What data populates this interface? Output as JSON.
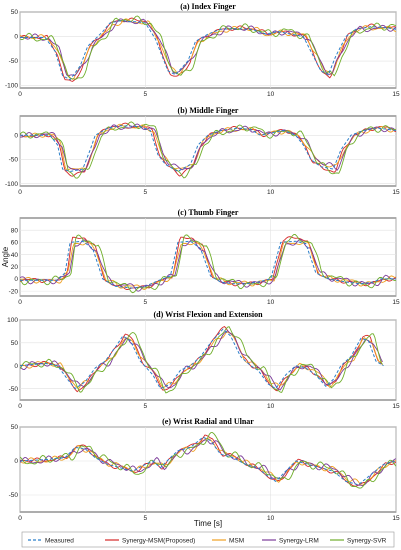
{
  "chart_data": {
    "type": "line",
    "xlabel": "Time [s]",
    "ylabel": "Angle",
    "legend": {
      "placement": "bottom",
      "entries": [
        "Measured",
        "Synergy-MSM(Proposed)",
        "MSM",
        "Synergy-LRM",
        "Synergy-SVR"
      ]
    },
    "series_styles": {
      "Measured": {
        "color": "#2b7fc9",
        "dash": true
      },
      "Synergy-MSM(Proposed)": {
        "color": "#d62728",
        "dash": false
      },
      "MSM": {
        "color": "#f0a020",
        "dash": false
      },
      "Synergy-LRM": {
        "color": "#7b3a99",
        "dash": false
      },
      "Synergy-SVR": {
        "color": "#6fae2a",
        "dash": false
      }
    },
    "panels": [
      {
        "title": "(a) Index Finger",
        "xlim": [
          0,
          15
        ],
        "ylim": [
          -105,
          50
        ],
        "xticks": [
          0,
          5,
          10,
          15
        ],
        "yticks": [
          50,
          0,
          -50,
          -100
        ],
        "measured": [
          [
            0,
            -2
          ],
          [
            1.0,
            -2
          ],
          [
            1.4,
            -30
          ],
          [
            1.7,
            -80
          ],
          [
            2.0,
            -88
          ],
          [
            2.4,
            -60
          ],
          [
            2.7,
            -20
          ],
          [
            3.0,
            -5
          ],
          [
            3.3,
            10
          ],
          [
            3.6,
            28
          ],
          [
            4.0,
            32
          ],
          [
            4.6,
            30
          ],
          [
            5.0,
            28
          ],
          [
            5.4,
            -5
          ],
          [
            5.9,
            -70
          ],
          [
            6.2,
            -78
          ],
          [
            6.7,
            -50
          ],
          [
            7.0,
            -10
          ],
          [
            7.5,
            5
          ],
          [
            8.0,
            15
          ],
          [
            8.7,
            16
          ],
          [
            9.3,
            14
          ],
          [
            9.8,
            5
          ],
          [
            10.3,
            10
          ],
          [
            10.8,
            5
          ],
          [
            11.3,
            0
          ],
          [
            11.7,
            -40
          ],
          [
            12.0,
            -70
          ],
          [
            12.3,
            -78
          ],
          [
            12.6,
            -40
          ],
          [
            13.0,
            0
          ],
          [
            13.4,
            15
          ],
          [
            14.0,
            20
          ],
          [
            14.6,
            18
          ],
          [
            15,
            15
          ]
        ]
      },
      {
        "title": "(b) Middle Finger",
        "xlim": [
          0,
          15
        ],
        "ylim": [
          -105,
          40
        ],
        "xticks": [
          0,
          5,
          10,
          15
        ],
        "yticks": [
          0,
          -50,
          -100
        ],
        "measured": [
          [
            0,
            0
          ],
          [
            1.2,
            0
          ],
          [
            1.5,
            -20
          ],
          [
            1.7,
            -70
          ],
          [
            2.0,
            -75
          ],
          [
            2.5,
            -70
          ],
          [
            2.8,
            -30
          ],
          [
            3.0,
            0
          ],
          [
            3.5,
            15
          ],
          [
            4.0,
            20
          ],
          [
            4.8,
            18
          ],
          [
            5.2,
            10
          ],
          [
            5.5,
            -40
          ],
          [
            5.8,
            -60
          ],
          [
            6.3,
            -75
          ],
          [
            6.8,
            -60
          ],
          [
            7.1,
            -20
          ],
          [
            7.5,
            0
          ],
          [
            8.0,
            10
          ],
          [
            8.7,
            15
          ],
          [
            9.2,
            12
          ],
          [
            9.6,
            0
          ],
          [
            10.0,
            5
          ],
          [
            10.5,
            10
          ],
          [
            11.0,
            0
          ],
          [
            11.3,
            -20
          ],
          [
            11.6,
            -50
          ],
          [
            12.0,
            -65
          ],
          [
            12.5,
            -70
          ],
          [
            12.8,
            -30
          ],
          [
            13.2,
            0
          ],
          [
            13.7,
            10
          ],
          [
            14.3,
            15
          ],
          [
            15,
            10
          ]
        ]
      },
      {
        "title": "(c) Thumb Finger",
        "xlim": [
          0,
          15
        ],
        "ylim": [
          -28,
          100
        ],
        "xticks": [
          0,
          5,
          10,
          15
        ],
        "yticks": [
          80,
          60,
          40,
          20,
          0,
          -20
        ],
        "measured": [
          [
            0,
            -2
          ],
          [
            1.5,
            -2
          ],
          [
            1.8,
            10
          ],
          [
            2.0,
            60
          ],
          [
            2.5,
            62
          ],
          [
            2.9,
            50
          ],
          [
            3.3,
            0
          ],
          [
            3.8,
            -12
          ],
          [
            4.5,
            -15
          ],
          [
            5.0,
            -12
          ],
          [
            5.5,
            -3
          ],
          [
            6.0,
            5
          ],
          [
            6.3,
            60
          ],
          [
            6.8,
            62
          ],
          [
            7.2,
            50
          ],
          [
            7.6,
            5
          ],
          [
            8.0,
            -5
          ],
          [
            8.5,
            -8
          ],
          [
            9.0,
            -8
          ],
          [
            9.5,
            -5
          ],
          [
            10.0,
            0
          ],
          [
            10.4,
            60
          ],
          [
            11.0,
            62
          ],
          [
            11.4,
            58
          ],
          [
            11.8,
            10
          ],
          [
            12.3,
            0
          ],
          [
            13.0,
            -5
          ],
          [
            13.6,
            -8
          ],
          [
            14.1,
            -5
          ],
          [
            14.4,
            0
          ],
          [
            15,
            0
          ]
        ]
      },
      {
        "title": "(d) Wrist Flexion and Extension",
        "xlim": [
          0,
          15
        ],
        "ylim": [
          -75,
          100
        ],
        "xticks": [
          0,
          5,
          10,
          15
        ],
        "yticks": [
          100,
          50,
          0,
          -50
        ],
        "measured": [
          [
            0,
            0
          ],
          [
            1.0,
            5
          ],
          [
            1.5,
            0
          ],
          [
            1.9,
            -30
          ],
          [
            2.2,
            -50
          ],
          [
            2.6,
            -35
          ],
          [
            3.0,
            -5
          ],
          [
            3.4,
            10
          ],
          [
            3.8,
            40
          ],
          [
            4.1,
            65
          ],
          [
            4.4,
            55
          ],
          [
            4.8,
            10
          ],
          [
            5.3,
            -20
          ],
          [
            5.6,
            -50
          ],
          [
            6.0,
            -40
          ],
          [
            6.4,
            -10
          ],
          [
            6.8,
            0
          ],
          [
            7.2,
            20
          ],
          [
            7.6,
            50
          ],
          [
            8.1,
            80
          ],
          [
            8.4,
            65
          ],
          [
            8.8,
            20
          ],
          [
            9.2,
            0
          ],
          [
            9.5,
            -10
          ],
          [
            9.9,
            -40
          ],
          [
            10.2,
            -50
          ],
          [
            10.6,
            -20
          ],
          [
            11.0,
            0
          ],
          [
            11.4,
            -5
          ],
          [
            11.8,
            -20
          ],
          [
            12.2,
            -45
          ],
          [
            12.5,
            -30
          ],
          [
            12.8,
            0
          ],
          [
            13.2,
            20
          ],
          [
            13.6,
            60
          ],
          [
            13.9,
            55
          ],
          [
            14.2,
            10
          ],
          [
            14.5,
            0
          ]
        ]
      },
      {
        "title": "(e) Wrist Radial and Ulnar",
        "xlim": [
          0,
          15
        ],
        "ylim": [
          -75,
          50
        ],
        "xticks": [
          0,
          5,
          10,
          15
        ],
        "yticks": [
          50,
          0,
          -50
        ],
        "measured": [
          [
            0,
            0
          ],
          [
            1.0,
            2
          ],
          [
            1.8,
            5
          ],
          [
            2.2,
            20
          ],
          [
            2.6,
            18
          ],
          [
            3.0,
            5
          ],
          [
            3.5,
            -5
          ],
          [
            4.0,
            -10
          ],
          [
            4.5,
            -15
          ],
          [
            5.0,
            -5
          ],
          [
            5.3,
            0
          ],
          [
            5.6,
            -10
          ],
          [
            6.0,
            5
          ],
          [
            6.3,
            15
          ],
          [
            6.8,
            20
          ],
          [
            7.3,
            35
          ],
          [
            7.6,
            30
          ],
          [
            8.0,
            10
          ],
          [
            8.5,
            5
          ],
          [
            9.0,
            -5
          ],
          [
            9.5,
            -10
          ],
          [
            9.8,
            -20
          ],
          [
            10.2,
            -30
          ],
          [
            10.6,
            -15
          ],
          [
            11.0,
            0
          ],
          [
            11.5,
            -5
          ],
          [
            12.0,
            -10
          ],
          [
            12.5,
            -15
          ],
          [
            13.0,
            -30
          ],
          [
            13.5,
            -35
          ],
          [
            14.0,
            -20
          ],
          [
            14.5,
            -5
          ],
          [
            15,
            0
          ]
        ]
      }
    ]
  }
}
